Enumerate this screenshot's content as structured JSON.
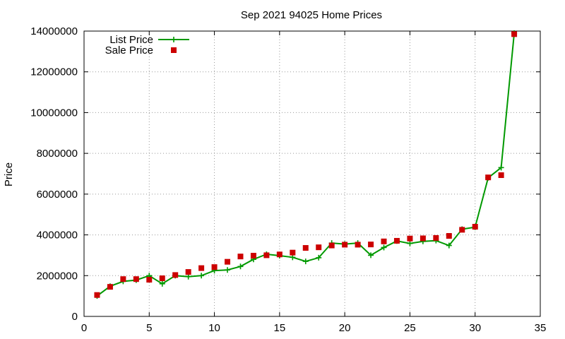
{
  "colors": {
    "list": "#009900",
    "sale": "#cc0000",
    "grid": "#999999",
    "axis": "#000000"
  },
  "chart_data": {
    "type": "line",
    "title": "Sep 2021 94025 Home Prices",
    "xlabel": "",
    "ylabel": "Price",
    "xlim": [
      0,
      35
    ],
    "ylim": [
      0,
      14000000
    ],
    "x_ticks": [
      "0",
      "5",
      "10",
      "15",
      "20",
      "25",
      "30",
      "35"
    ],
    "y_ticks": [
      "0",
      "2000000",
      "4000000",
      "6000000",
      "8000000",
      "10000000",
      "12000000",
      "14000000"
    ],
    "grid": true,
    "legend_position": "top-left",
    "series": [
      {
        "name": "List Price",
        "style": "line-plus",
        "x": [
          1,
          2,
          3,
          4,
          5,
          6,
          7,
          8,
          9,
          10,
          11,
          12,
          13,
          14,
          15,
          16,
          17,
          18,
          19,
          20,
          21,
          22,
          23,
          24,
          25,
          26,
          27,
          28,
          29,
          30,
          31,
          32,
          33
        ],
        "y": [
          1000000,
          1480000,
          1720000,
          1780000,
          2000000,
          1600000,
          2000000,
          1950000,
          2000000,
          2250000,
          2280000,
          2450000,
          2800000,
          3050000,
          2980000,
          2900000,
          2700000,
          2880000,
          3600000,
          3550000,
          3600000,
          3000000,
          3380000,
          3700000,
          3580000,
          3680000,
          3720000,
          3480000,
          4280000,
          4380000,
          6800000,
          7300000,
          13900000
        ]
      },
      {
        "name": "Sale Price",
        "style": "square",
        "x": [
          1,
          2,
          3,
          4,
          5,
          6,
          7,
          8,
          9,
          10,
          11,
          12,
          13,
          14,
          15,
          16,
          17,
          18,
          19,
          20,
          21,
          22,
          23,
          24,
          25,
          26,
          27,
          28,
          29,
          30,
          31,
          32,
          33
        ],
        "y": [
          1050000,
          1450000,
          1830000,
          1830000,
          1800000,
          1870000,
          2030000,
          2180000,
          2370000,
          2420000,
          2680000,
          2940000,
          2980000,
          3000000,
          3040000,
          3130000,
          3360000,
          3390000,
          3480000,
          3520000,
          3520000,
          3530000,
          3680000,
          3710000,
          3820000,
          3830000,
          3850000,
          3950000,
          4250000,
          4400000,
          6820000,
          6930000,
          13850000
        ]
      }
    ]
  }
}
